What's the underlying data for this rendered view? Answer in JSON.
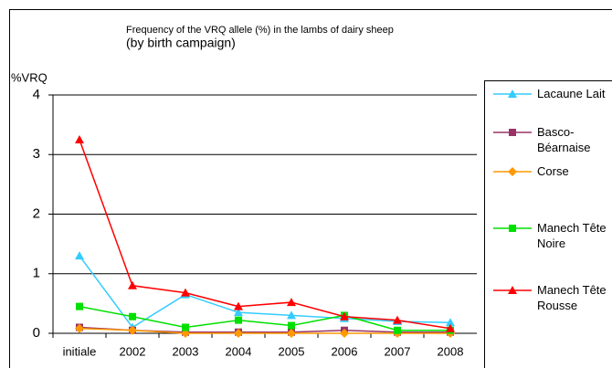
{
  "chart_data": {
    "type": "line",
    "title": "Frequency of the VRQ allele (%) in the lambs of dairy sheep",
    "subtitle": "(by birth campaign)",
    "y_label": "%VRQ",
    "categories": [
      "initiale",
      "2002",
      "2003",
      "2004",
      "2005",
      "2006",
      "2007",
      "2008"
    ],
    "ylim": [
      0,
      4
    ],
    "yticks": [
      0,
      1,
      2,
      3,
      4
    ],
    "grid": true,
    "legend": "right",
    "series": [
      {
        "name": "Lacaune Lait",
        "color": "#33ccff",
        "marker": "triangle",
        "values": [
          1.3,
          0.1,
          0.65,
          0.35,
          0.3,
          0.25,
          0.2,
          0.18
        ]
      },
      {
        "name": "Basco-Béarnaise",
        "color": "#993366",
        "marker": "square",
        "values": [
          0.1,
          0.05,
          0.02,
          0.02,
          0.02,
          0.05,
          0.02,
          0.02
        ]
      },
      {
        "name": "Corse",
        "color": "#ff9900",
        "marker": "diamond",
        "values": [
          0.08,
          0.05,
          0,
          0,
          0,
          0,
          0,
          0
        ]
      },
      {
        "name": "Manech Tête Noire",
        "color": "#00e000",
        "marker": "square",
        "values": [
          0.45,
          0.28,
          0.1,
          0.22,
          0.13,
          0.3,
          0.05,
          0.05
        ]
      },
      {
        "name": "Manech Tête Rousse",
        "color": "#ff0000",
        "marker": "triangle",
        "values": [
          3.25,
          0.8,
          0.68,
          0.45,
          0.52,
          0.28,
          0.22,
          0.08
        ]
      }
    ]
  }
}
